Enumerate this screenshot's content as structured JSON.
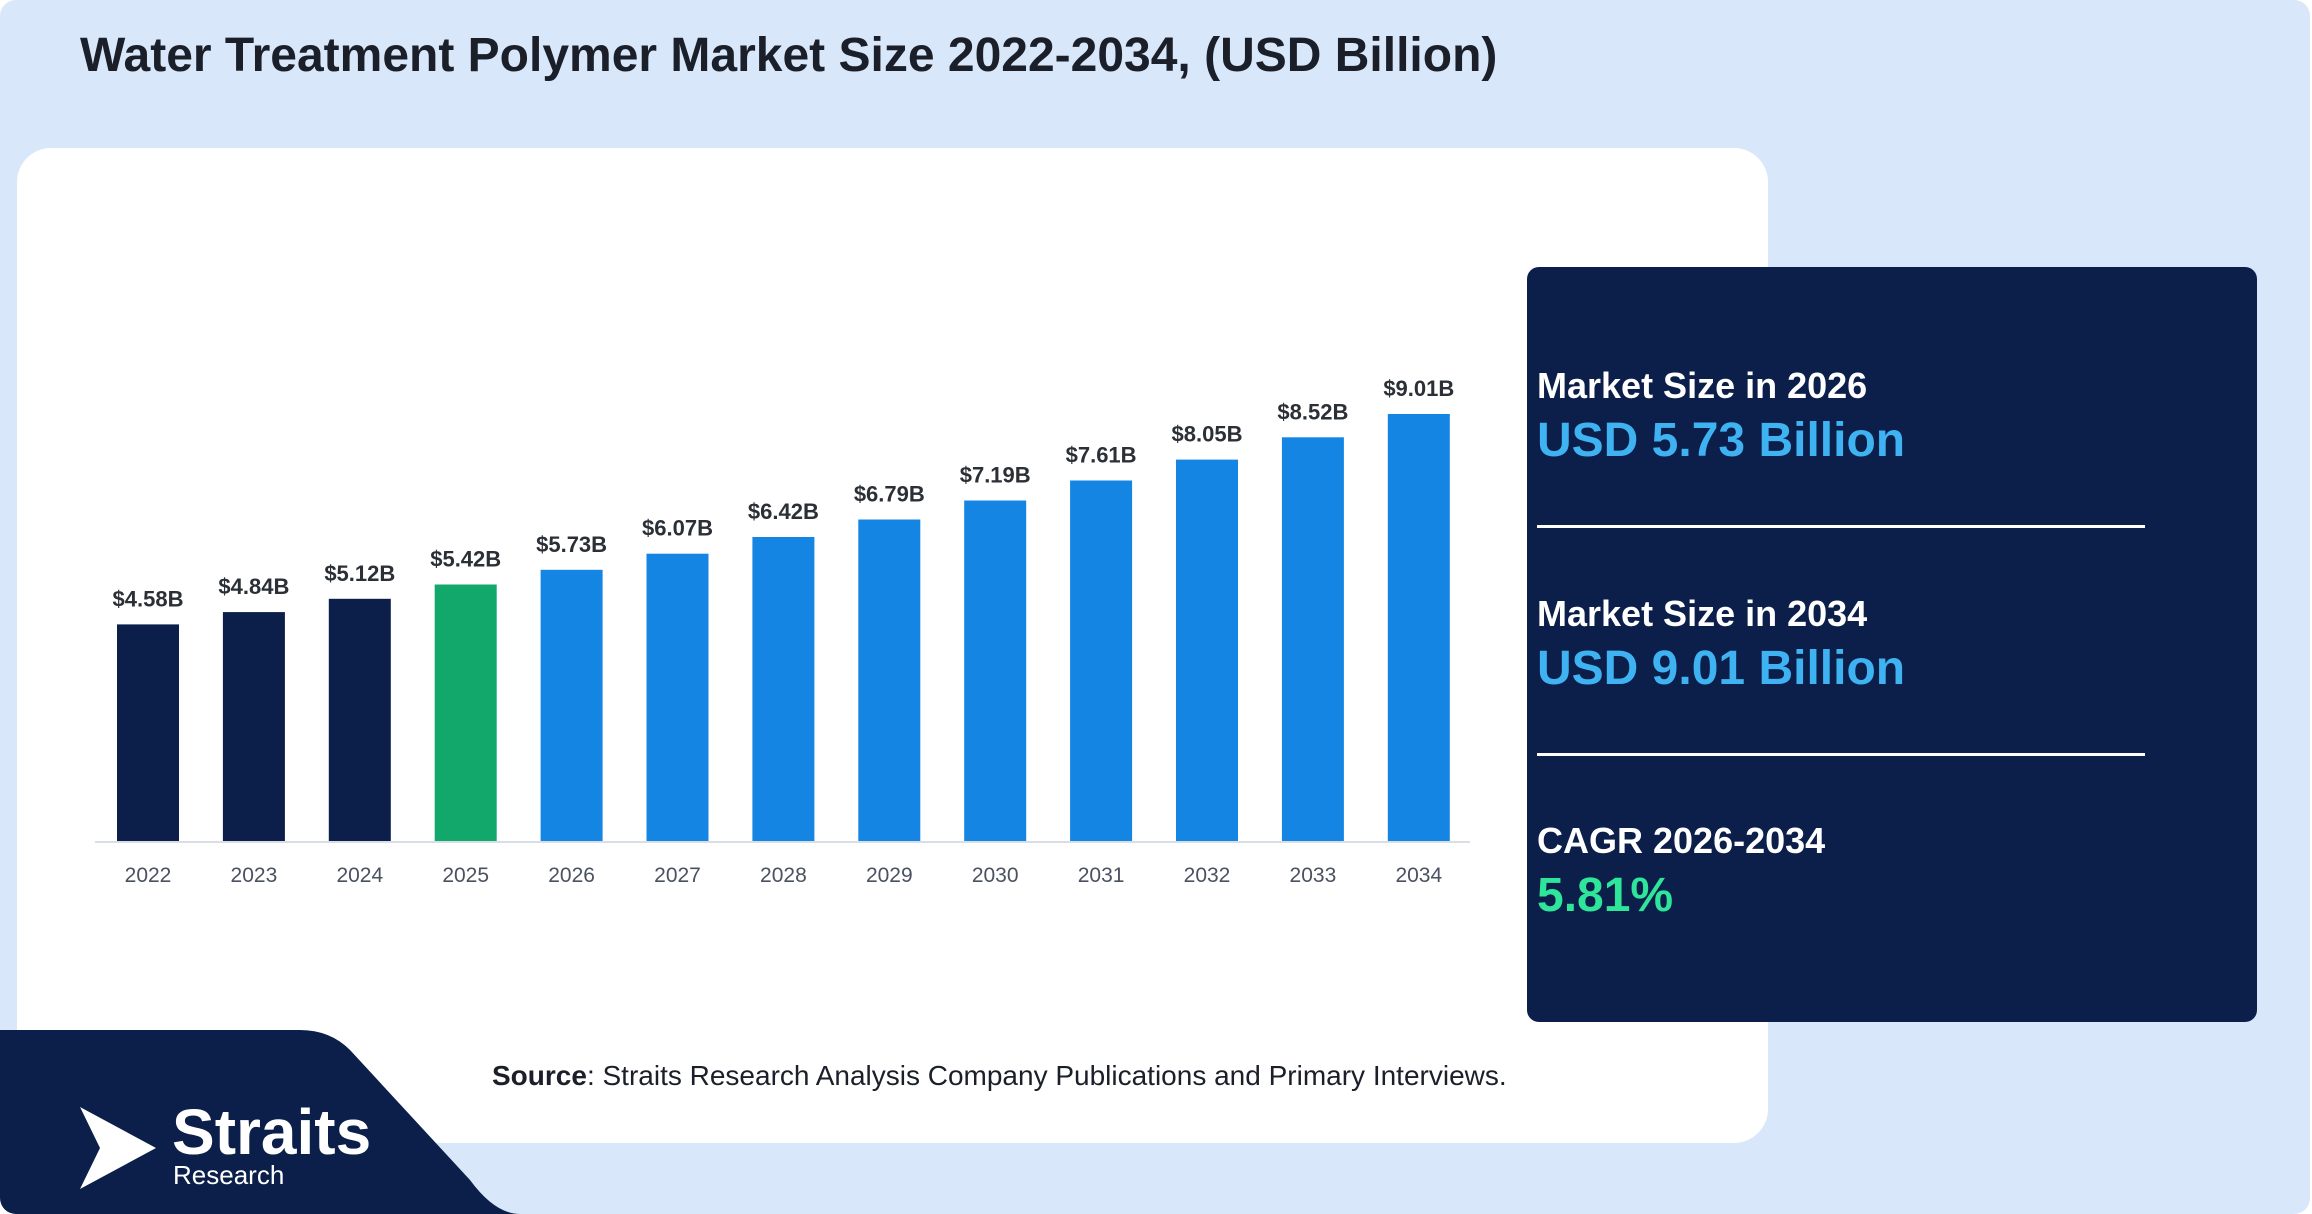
{
  "title": "Water Treatment Polymer Market Size 2022-2034, (USD Billion)",
  "chart_data": {
    "type": "bar",
    "categories": [
      "2022",
      "2023",
      "2024",
      "2025",
      "2026",
      "2027",
      "2028",
      "2029",
      "2030",
      "2031",
      "2032",
      "2033",
      "2034"
    ],
    "values": [
      4.58,
      4.84,
      5.12,
      5.42,
      5.73,
      6.07,
      6.42,
      6.79,
      7.19,
      7.61,
      8.05,
      8.52,
      9.01
    ],
    "data_labels": [
      "$4.58B",
      "$4.84B",
      "$5.12B",
      "$5.42B",
      "$5.73B",
      "$6.07B",
      "$6.42B",
      "$6.79B",
      "$7.19B",
      "$7.61B",
      "$8.05B",
      "$8.52B",
      "$9.01B"
    ],
    "bar_colors": [
      "#0b1f4a",
      "#0b1f4a",
      "#0b1f4a",
      "#13a86b",
      "#1485e3",
      "#1485e3",
      "#1485e3",
      "#1485e3",
      "#1485e3",
      "#1485e3",
      "#1485e3",
      "#1485e3",
      "#1485e3"
    ],
    "ylim": [
      0,
      9.01
    ],
    "xlabel": "",
    "ylabel": "",
    "grid": false
  },
  "info": {
    "items": [
      {
        "label": "Market Size in 2026",
        "value": "USD 5.73 Billion",
        "color": "#3fb2f2"
      },
      {
        "label": "Market Size in 2034",
        "value": "USD 9.01 Billion",
        "color": "#3fb2f2"
      },
      {
        "label": "CAGR 2026-2034",
        "value": "5.81%",
        "color": "#2ee59a"
      }
    ]
  },
  "source": {
    "label": "Source",
    "text": ": Straits Research Analysis Company Publications and Primary Interviews."
  },
  "logo": {
    "name": "Straits",
    "sub": "Research"
  },
  "colors": {
    "background": "#d9e7fa",
    "panel": "#0b1f4a",
    "historic": "#0b1f4a",
    "base_year": "#13a86b",
    "forecast": "#1485e3"
  }
}
